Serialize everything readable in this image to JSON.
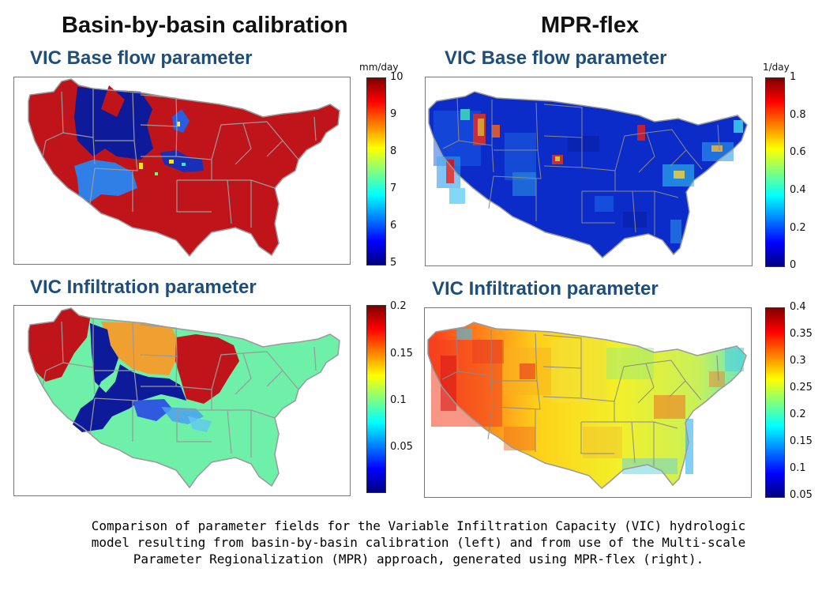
{
  "columns": {
    "left_title": "Basin-by-basin calibration",
    "right_title": "MPR-flex"
  },
  "panels": {
    "base_flow_title": "VIC Base flow parameter",
    "infiltration_title": "VIC Infiltration parameter"
  },
  "colorbars": {
    "left_top": {
      "unit": "mm/day",
      "ticks": [
        "10",
        "9",
        "8",
        "7",
        "6",
        "5"
      ],
      "range": [
        5,
        10
      ]
    },
    "right_top": {
      "unit": "1/day",
      "ticks": [
        "1",
        "0.8",
        "0.6",
        "0.4",
        "0.2",
        "0"
      ],
      "range": [
        0,
        1
      ]
    },
    "left_bottom": {
      "unit": "",
      "ticks": [
        "0.2",
        "0.15",
        "0.1",
        "0.05"
      ],
      "range": [
        0,
        0.2
      ]
    },
    "right_bottom": {
      "unit": "",
      "ticks": [
        "0.4",
        "0.35",
        "0.3",
        "0.25",
        "0.2",
        "0.15",
        "0.1",
        "0.05"
      ],
      "range": [
        0.05,
        0.4
      ]
    }
  },
  "colormap": "jet",
  "colors": {
    "map_red": "#c0141b",
    "map_navy": "#0d1a9a",
    "map_blue": "#2f7fe6",
    "map_mint": "#6ef0a8",
    "map_orange": "#f0a030",
    "state_border": "#9a9a9a"
  },
  "caption": {
    "line1": "Comparison of parameter fields for the Variable Infiltration Capacity (VIC) hydrologic",
    "line2": "model resulting from basin-by-basin calibration (left) and from use of the Multi-scale",
    "line3": "Parameter Regionalization (MPR) approach, generated using MPR-flex (right)."
  }
}
